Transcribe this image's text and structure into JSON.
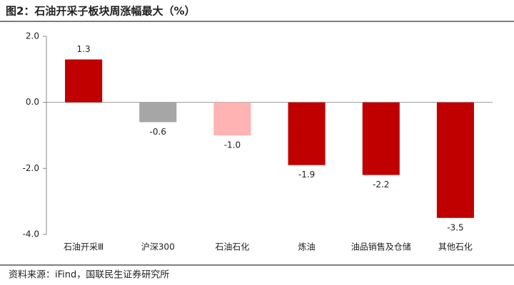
{
  "chart_data": {
    "type": "bar",
    "title": "图2：石油开采子板块周涨幅最大（%）",
    "categories": [
      "石油开采Ⅲ",
      "沪深300",
      "石油石化",
      "炼油",
      "油品销售及仓储",
      "其他石化"
    ],
    "values": [
      1.3,
      -0.6,
      -1.0,
      -1.9,
      -2.2,
      -3.5
    ],
    "value_labels": [
      "1.3",
      "-0.6",
      "-1.0",
      "-1.9",
      "-2.2",
      "-3.5"
    ],
    "colors": [
      "#c00000",
      "#a6a6a6",
      "#ffb3b3",
      "#c00000",
      "#c00000",
      "#c00000"
    ],
    "ylim": [
      -4,
      2
    ],
    "yticks": [
      {
        "value": 2,
        "label": "2.0"
      },
      {
        "value": 0,
        "label": "0.0"
      },
      {
        "value": -2,
        "label": "-2.0"
      },
      {
        "value": -4,
        "label": "-4.0"
      }
    ],
    "source": "资料来源：iFind，国联民生证券研究所"
  }
}
